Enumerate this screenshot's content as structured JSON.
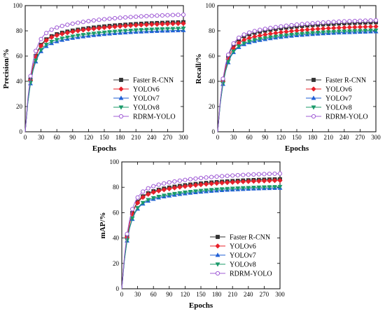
{
  "chart_data": [
    {
      "type": "line",
      "title": "",
      "xlabel": "Epochs",
      "ylabel": "Precision/%",
      "xlim": [
        0,
        300
      ],
      "ylim": [
        0,
        100
      ],
      "xticks": [
        0,
        30,
        60,
        90,
        120,
        150,
        180,
        210,
        240,
        270,
        300
      ],
      "yticks": [
        0,
        20,
        40,
        60,
        80,
        100
      ],
      "legend": "bottom-right",
      "grid": false,
      "series": [
        {
          "name": "Faster R-CNN",
          "color": "#333333",
          "marker": "square",
          "final": 88
        },
        {
          "name": "YOLOv6",
          "color": "#e8202a",
          "marker": "diamond",
          "final": 87
        },
        {
          "name": "YOLOv7",
          "color": "#1f5fd6",
          "marker": "triangle-up",
          "final": 81.5
        },
        {
          "name": "YOLOv8",
          "color": "#1a9a6a",
          "marker": "triangle-down",
          "final": 83
        },
        {
          "name": "RDRM-YOLO",
          "color": "#a05cd6",
          "marker": "circle",
          "final": 94
        }
      ]
    },
    {
      "type": "line",
      "title": "",
      "xlabel": "Epochs",
      "ylabel": "Recall/%",
      "xlim": [
        0,
        300
      ],
      "ylim": [
        0,
        100
      ],
      "xticks": [
        0,
        30,
        60,
        90,
        120,
        150,
        180,
        210,
        240,
        270,
        300
      ],
      "yticks": [
        0,
        20,
        40,
        60,
        80,
        100
      ],
      "legend": "bottom-right",
      "grid": false,
      "series": [
        {
          "name": "Faster R-CNN",
          "color": "#333333",
          "marker": "square",
          "final": 88
        },
        {
          "name": "YOLOv6",
          "color": "#e8202a",
          "marker": "diamond",
          "final": 84.5
        },
        {
          "name": "YOLOv7",
          "color": "#1f5fd6",
          "marker": "triangle-up",
          "final": 80.5
        },
        {
          "name": "YOLOv8",
          "color": "#1a9a6a",
          "marker": "triangle-down",
          "final": 81.5
        },
        {
          "name": "RDRM-YOLO",
          "color": "#a05cd6",
          "marker": "circle",
          "final": 89.5
        }
      ]
    },
    {
      "type": "line",
      "title": "",
      "xlabel": "Epochs",
      "ylabel": "mAP/%",
      "xlim": [
        0,
        300
      ],
      "ylim": [
        0,
        100
      ],
      "xticks": [
        0,
        30,
        60,
        90,
        120,
        150,
        180,
        210,
        240,
        270,
        300
      ],
      "yticks": [
        0,
        20,
        40,
        60,
        80,
        100
      ],
      "legend": "bottom-right",
      "grid": false,
      "series": [
        {
          "name": "Faster R-CNN",
          "color": "#333333",
          "marker": "square",
          "final": 87.5
        },
        {
          "name": "YOLOv6",
          "color": "#e8202a",
          "marker": "diamond",
          "final": 86.5
        },
        {
          "name": "YOLOv7",
          "color": "#1f5fd6",
          "marker": "triangle-up",
          "final": 80.5
        },
        {
          "name": "YOLOv8",
          "color": "#1a9a6a",
          "marker": "triangle-down",
          "final": 81.5
        },
        {
          "name": "RDRM-YOLO",
          "color": "#a05cd6",
          "marker": "circle",
          "final": 92
        }
      ]
    }
  ]
}
